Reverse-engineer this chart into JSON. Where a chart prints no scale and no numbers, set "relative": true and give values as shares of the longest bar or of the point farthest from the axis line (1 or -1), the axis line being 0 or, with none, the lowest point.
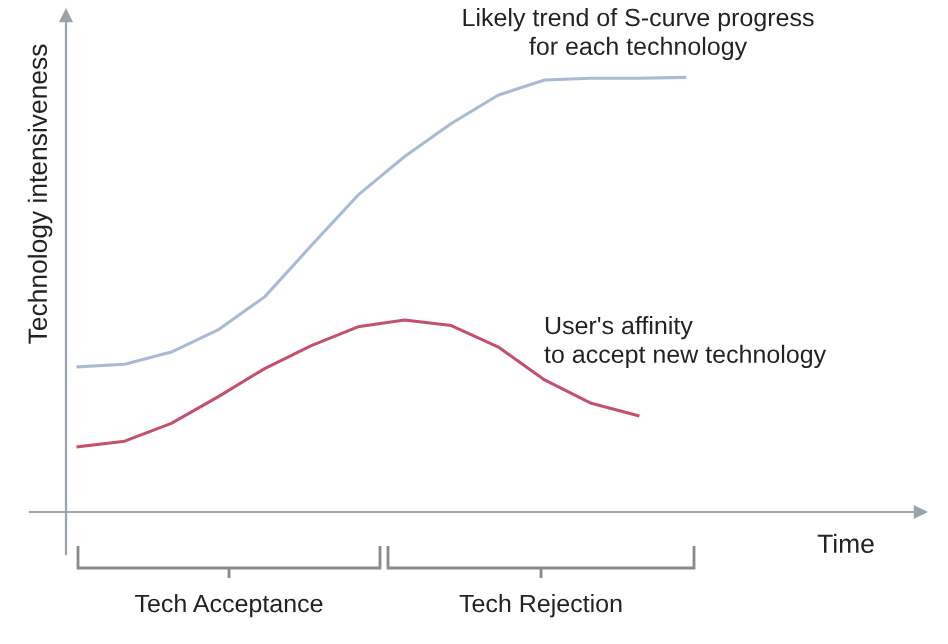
{
  "chart_data": {
    "type": "line",
    "relative": true,
    "xlabel": "Time",
    "ylabel": "Technology intensiveness",
    "legend": false,
    "marker": "none",
    "line_style": "solid",
    "categories": [
      null,
      null,
      null,
      null,
      null,
      null,
      null,
      null,
      null,
      null,
      null,
      null,
      null,
      null
    ],
    "series": [
      {
        "name": "Likely trend of S-curve progress\nfor each technology",
        "color": "#a9bad6",
        "values": [
          0.334,
          0.34,
          0.368,
          0.419,
          0.495,
          0.613,
          0.729,
          0.818,
          0.894,
          0.959,
          0.994,
          0.998,
          0.998,
          1.0
        ]
      },
      {
        "name": "User's affinity\nto accept new technology",
        "color": "#c4516c",
        "values": [
          0.15,
          0.163,
          0.204,
          0.265,
          0.33,
          0.383,
          0.426,
          0.442,
          0.429,
          0.38,
          0.304,
          0.25,
          0.222,
          null
        ]
      }
    ],
    "annotations": [
      "Tech Acceptance",
      "Tech Rejection"
    ]
  }
}
